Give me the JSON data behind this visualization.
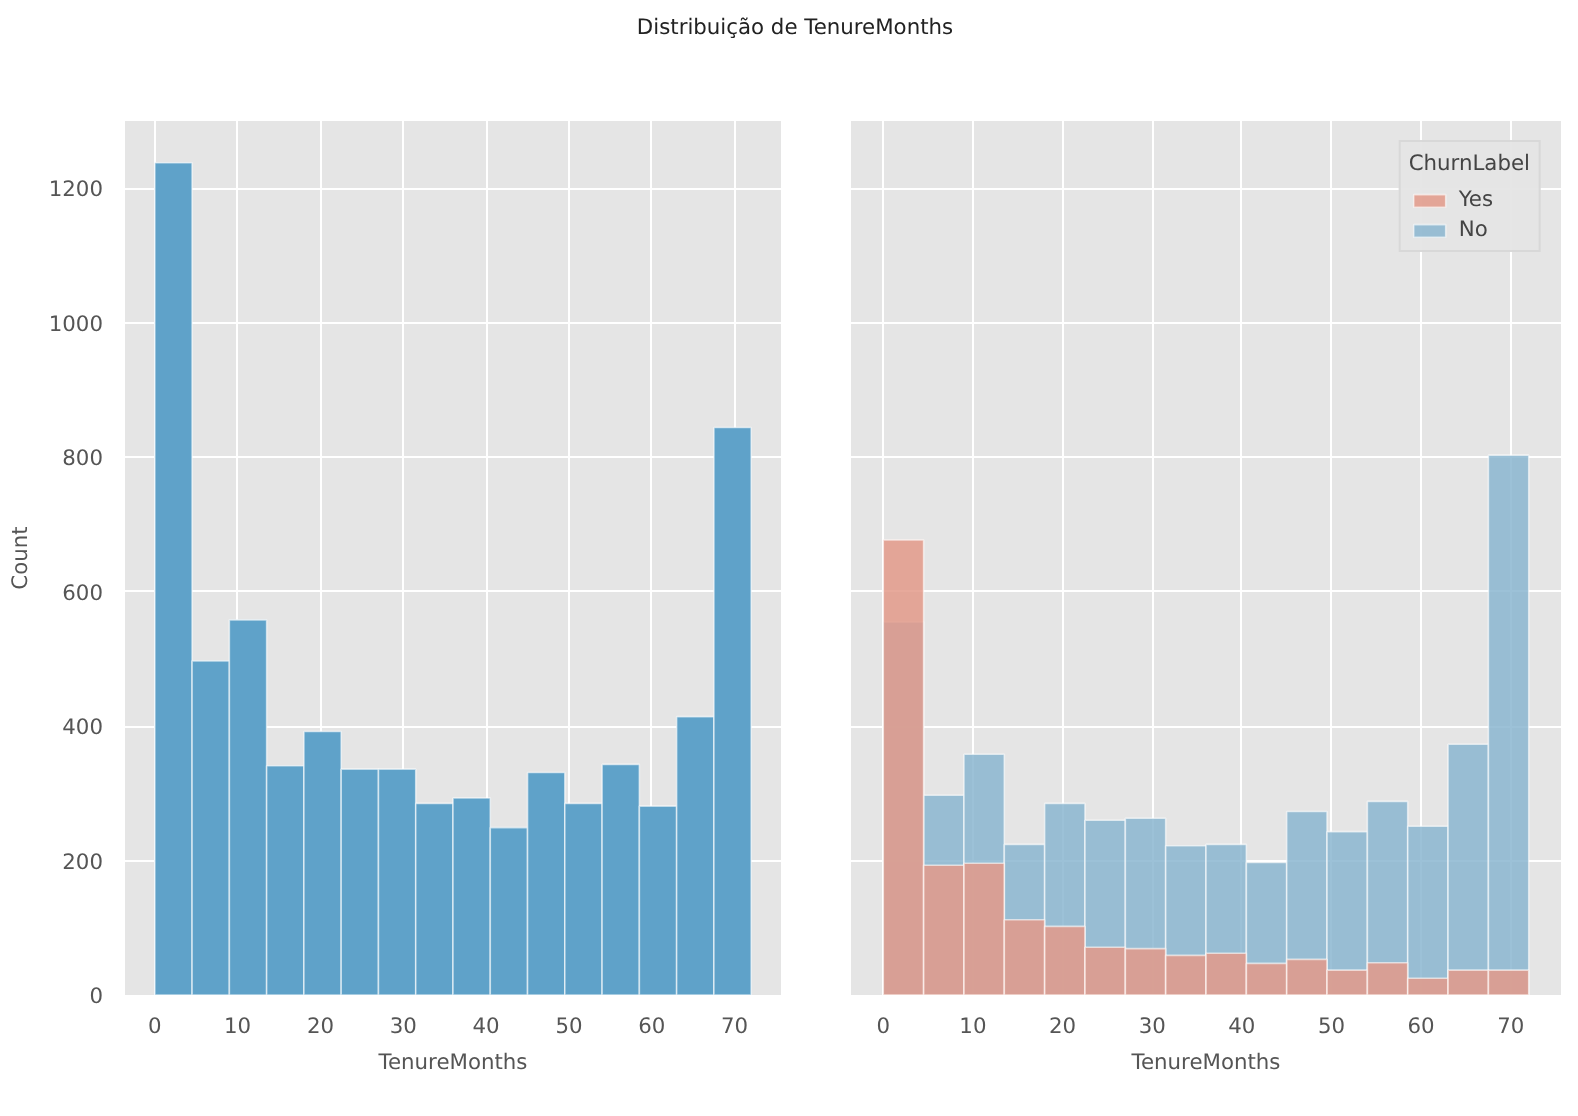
{
  "chart_data": [
    {
      "type": "histogram",
      "title": "Distribuição de TenureMonths",
      "xlabel": "TenureMonths",
      "ylabel": "Count",
      "bins": [
        0,
        4.5,
        9,
        13.5,
        18,
        22.5,
        27,
        31.5,
        36,
        40.5,
        45,
        49.5,
        54,
        58.5,
        63,
        67.5,
        72
      ],
      "values": [
        1238,
        497,
        558,
        341,
        392,
        336,
        336,
        285,
        293,
        249,
        331,
        285,
        343,
        281,
        414,
        844
      ],
      "color": "#5fa2c9",
      "xlim": [
        -3.6,
        75.6
      ],
      "ylim": [
        0,
        1300
      ],
      "xticks": [
        0,
        10,
        20,
        30,
        40,
        50,
        60,
        70
      ],
      "yticks": [
        0,
        200,
        400,
        600,
        800,
        1000,
        1200
      ],
      "grid": true
    },
    {
      "type": "histogram",
      "xlabel": "TenureMonths",
      "legend_title": "ChurnLabel",
      "bins": [
        0,
        4.5,
        9,
        13.5,
        18,
        22.5,
        27,
        31.5,
        36,
        40.5,
        45,
        49.5,
        54,
        58.5,
        63,
        67.5,
        72
      ],
      "series": [
        {
          "name": "Yes",
          "color": "#e39a8a",
          "values": [
            677,
            193,
            196,
            112,
            102,
            71,
            69,
            59,
            62,
            47,
            53,
            37,
            48,
            25,
            37,
            37
          ]
        },
        {
          "name": "No",
          "color": "#8bb6d0",
          "values": [
            555,
            297,
            358,
            224,
            285,
            260,
            263,
            222,
            224,
            197,
            273,
            243,
            288,
            251,
            373,
            803
          ]
        }
      ],
      "xlim": [
        -3.6,
        75.6
      ],
      "ylim": [
        0,
        1300
      ],
      "xticks": [
        0,
        10,
        20,
        30,
        40,
        50,
        60,
        70
      ],
      "yticks": [
        0,
        200,
        400,
        600,
        800,
        1000,
        1200
      ],
      "grid": true,
      "legend": "top right",
      "tick_labels": "x"
    }
  ]
}
